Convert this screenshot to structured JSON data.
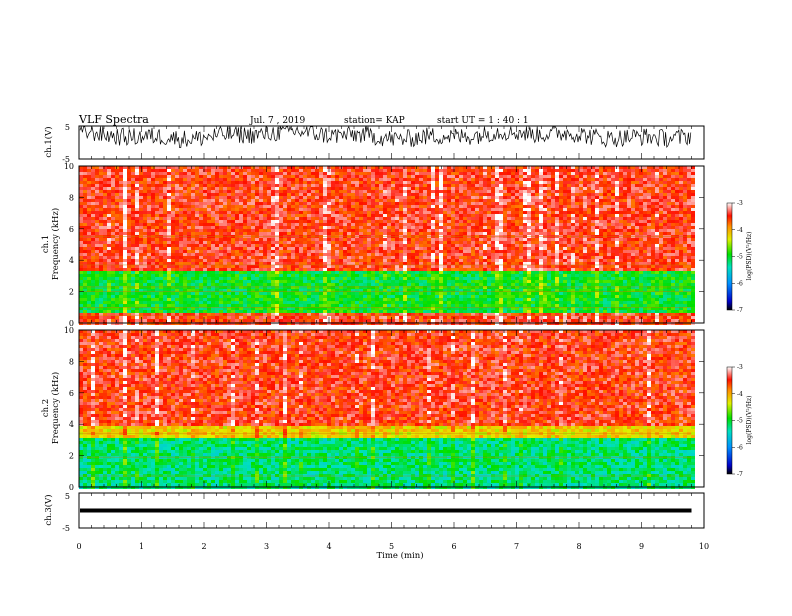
{
  "header": {
    "title": "VLF Spectra",
    "date": "Jul. 7 , 2019",
    "station": "station= KAP",
    "start": "start UT = 1 : 40 : 1"
  },
  "chart_data": [
    {
      "type": "line",
      "panel": "ch1-waveform",
      "ylabel": "ch.1(V)",
      "yticks": [
        "5",
        "-5"
      ],
      "ylim": [
        -5,
        5
      ],
      "x_range": [
        0,
        9.8
      ],
      "description_of_trace": "noisy waveform oscillating near +2 to +5 V"
    },
    {
      "type": "heatmap",
      "panel": "ch1-spectrogram",
      "ylabel_top": "ch.1",
      "ylabel": "Frequency (kHz)",
      "yticks": [
        "0",
        "2",
        "4",
        "6",
        "8",
        "10"
      ],
      "ylim": [
        0,
        10
      ],
      "x_range": [
        0,
        9.8
      ],
      "colorbar": {
        "label": "log(PSD)(V²/Hz)",
        "ticks": [
          "-3",
          "-4",
          "-5",
          "-6",
          "-7"
        ],
        "range": [
          -7,
          -3
        ]
      },
      "bands": [
        {
          "from_khz": 0.2,
          "to_khz": 0.7,
          "level": -3.5
        },
        {
          "from_khz": 0.7,
          "to_khz": 3.5,
          "level": -5.0
        },
        {
          "from_khz": 3.5,
          "to_khz": 10,
          "level": -3.5
        }
      ]
    },
    {
      "type": "heatmap",
      "panel": "ch2-spectrogram",
      "ylabel_top": "ch.2",
      "ylabel": "Frequency (kHz)",
      "yticks": [
        "0",
        "2",
        "4",
        "6",
        "8",
        "10"
      ],
      "ylim": [
        0,
        10
      ],
      "x_range": [
        0,
        9.8
      ],
      "colorbar": {
        "label": "log(PSD)(V²/Hz)",
        "ticks": [
          "-3",
          "-4",
          "-5",
          "-6",
          "-7"
        ],
        "range": [
          -7,
          -3
        ]
      },
      "bands": [
        {
          "from_khz": 0.0,
          "to_khz": 3.2,
          "level": -5.2
        },
        {
          "from_khz": 3.2,
          "to_khz": 4.0,
          "level": -4.2
        },
        {
          "from_khz": 4.0,
          "to_khz": 10,
          "level": -3.5
        }
      ]
    },
    {
      "type": "line",
      "panel": "ch3-waveform",
      "ylabel": "ch.3(V)",
      "yticks": [
        "5",
        "-5"
      ],
      "ylim": [
        -5,
        5
      ],
      "x_range": [
        0,
        9.8
      ],
      "constant_value": 0
    }
  ],
  "x_axis": {
    "label": "Time (min)",
    "ticks": [
      "0",
      "1",
      "2",
      "3",
      "4",
      "5",
      "6",
      "7",
      "8",
      "9",
      "10"
    ],
    "range": [
      0,
      10
    ]
  }
}
